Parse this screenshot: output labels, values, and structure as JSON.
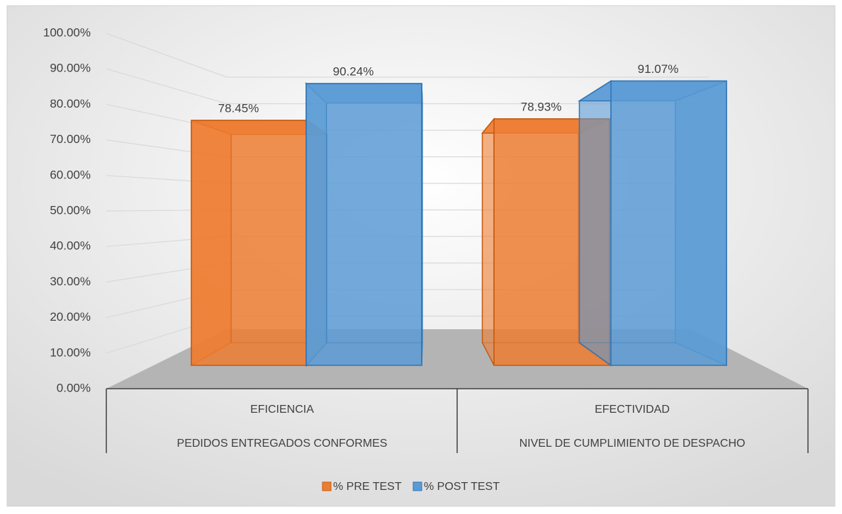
{
  "chart_data": {
    "type": "bar3d",
    "categories": [
      "EFICIENCIA",
      "EFECTIVIDAD"
    ],
    "subcategories": [
      "PEDIDOS ENTREGADOS CONFORMES",
      "NIVEL DE CUMPLIMIENTO DE DESPACHO"
    ],
    "series": [
      {
        "name": "% PRE TEST",
        "color": "#ed7d31",
        "values": [
          78.45,
          78.93
        ],
        "value_labels": [
          "78.45%",
          "78.93%"
        ]
      },
      {
        "name": "% POST TEST",
        "color": "#5b9bd5",
        "values": [
          90.24,
          91.07
        ],
        "value_labels": [
          "90.24%",
          "91.07%"
        ]
      }
    ],
    "ylim": [
      0,
      100
    ],
    "yticks": [
      {
        "value": 0,
        "label": "0.00%"
      },
      {
        "value": 10,
        "label": "10.00%"
      },
      {
        "value": 20,
        "label": "20.00%"
      },
      {
        "value": 30,
        "label": "30.00%"
      },
      {
        "value": 40,
        "label": "40.00%"
      },
      {
        "value": 50,
        "label": "50.00%"
      },
      {
        "value": 60,
        "label": "60.00%"
      },
      {
        "value": 70,
        "label": "70.00%"
      },
      {
        "value": 80,
        "label": "80.00%"
      },
      {
        "value": 90,
        "label": "90.00%"
      },
      {
        "value": 100,
        "label": "100.00%"
      }
    ],
    "grid": true,
    "legend": "bottom"
  }
}
